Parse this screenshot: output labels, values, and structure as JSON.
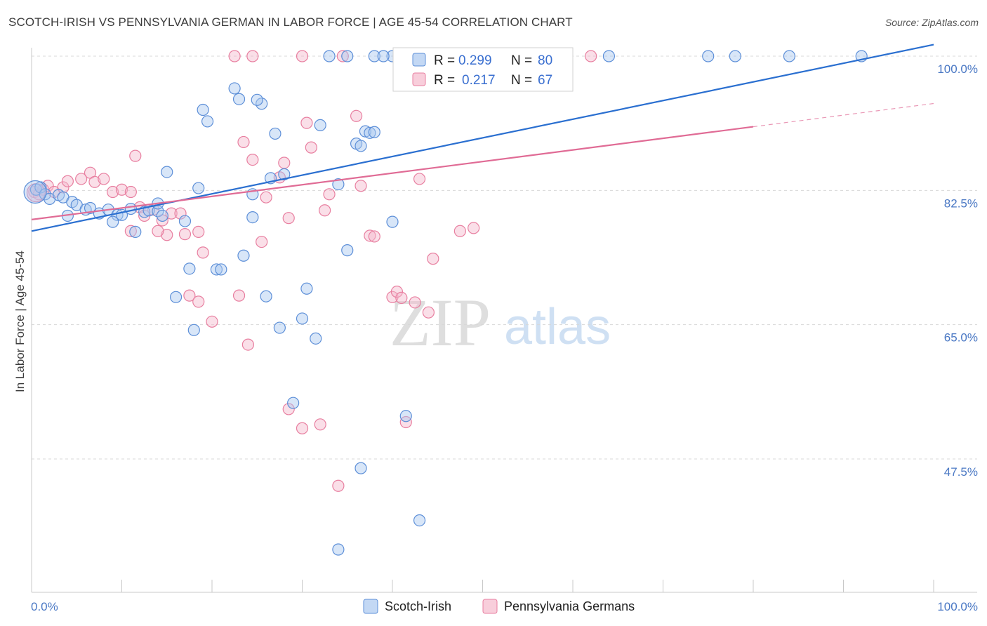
{
  "title": "SCOTCH-IRISH VS PENNSYLVANIA GERMAN IN LABOR FORCE | AGE 45-54 CORRELATION CHART",
  "source": "Source: ZipAtlas.com",
  "watermark": {
    "zip": "ZIP",
    "atlas": "atlas"
  },
  "colors": {
    "blue_fill": "#a9c8f0",
    "blue_stroke": "#5d8fd8",
    "blue_line": "#2a6fd0",
    "pink_fill": "#f5b9cc",
    "pink_stroke": "#e87fa0",
    "pink_line": "#e06b95",
    "grid": "#d8d8d8",
    "tick_text": "#4a78c4"
  },
  "legend": {
    "r_label": "R =",
    "n_label": "N =",
    "rows": [
      {
        "r": "0.299",
        "n": "80"
      },
      {
        "r": "0.217",
        "n": "67"
      }
    ]
  },
  "chart_data": {
    "type": "scatter",
    "title": "SCOTCH-IRISH VS PENNSYLVANIA GERMAN IN LABOR FORCE | AGE 45-54 CORRELATION CHART",
    "xlabel": "",
    "ylabel": "In Labor Force | Age 45-54",
    "xlim": [
      0,
      100
    ],
    "ylim": [
      35.0,
      101.5
    ],
    "x_tick_labels": [
      {
        "v": 0,
        "label": "0.0%"
      },
      {
        "v": 100,
        "label": "100.0%"
      }
    ],
    "y_ticks": [
      {
        "v": 100.0,
        "label": "100.0%"
      },
      {
        "v": 82.5,
        "label": "82.5%"
      },
      {
        "v": 65.0,
        "label": "65.0%"
      },
      {
        "v": 47.5,
        "label": "47.5%"
      }
    ],
    "grid": "horizontal dashed",
    "legend_placement": "top-center",
    "series": [
      {
        "name": "Scotch-Irish",
        "trend": {
          "x0": 0,
          "y0": 77.2,
          "x1": 100,
          "y1": 101.5
        },
        "points": [
          [
            0.5,
            82.6
          ],
          [
            1.0,
            82.9
          ],
          [
            1.5,
            82.0
          ],
          [
            2.0,
            81.4
          ],
          [
            3.0,
            81.9
          ],
          [
            3.5,
            81.6
          ],
          [
            4.5,
            81.0
          ],
          [
            5.0,
            80.6
          ],
          [
            4.0,
            79.2
          ],
          [
            6.0,
            80.0
          ],
          [
            6.5,
            80.2
          ],
          [
            7.5,
            79.5
          ],
          [
            8.5,
            80.0
          ],
          [
            9.5,
            79.3
          ],
          [
            10.0,
            79.3
          ],
          [
            11.0,
            80.1
          ],
          [
            12.5,
            79.7
          ],
          [
            13.0,
            79.9
          ],
          [
            14.0,
            79.8
          ],
          [
            14.5,
            79.2
          ],
          [
            9.0,
            78.4
          ],
          [
            11.5,
            77.1
          ],
          [
            15.0,
            84.9
          ],
          [
            18.5,
            82.8
          ],
          [
            19.0,
            93.0
          ],
          [
            19.5,
            91.5
          ],
          [
            17.0,
            78.5
          ],
          [
            17.5,
            72.3
          ],
          [
            20.5,
            72.2
          ],
          [
            21.0,
            72.2
          ],
          [
            16.0,
            68.6
          ],
          [
            18.0,
            64.3
          ],
          [
            14.0,
            80.8
          ],
          [
            22.5,
            95.8
          ],
          [
            23.0,
            94.4
          ],
          [
            25.5,
            93.8
          ],
          [
            24.5,
            82.0
          ],
          [
            24.5,
            79.0
          ],
          [
            23.5,
            74.0
          ],
          [
            27.0,
            89.9
          ],
          [
            26.5,
            84.1
          ],
          [
            28.0,
            84.6
          ],
          [
            26.0,
            68.7
          ],
          [
            27.5,
            64.6
          ],
          [
            30.5,
            69.7
          ],
          [
            30.0,
            65.8
          ],
          [
            31.5,
            63.2
          ],
          [
            25.0,
            94.3
          ],
          [
            32.0,
            91.0
          ],
          [
            34.0,
            83.3
          ],
          [
            29.0,
            54.8
          ],
          [
            35.0,
            74.7
          ],
          [
            36.0,
            88.6
          ],
          [
            36.5,
            88.3
          ],
          [
            37.0,
            90.2
          ],
          [
            37.5,
            90.0
          ],
          [
            38.0,
            90.1
          ],
          [
            40.0,
            78.4
          ],
          [
            41.5,
            53.1
          ],
          [
            43.0,
            98.0
          ],
          [
            45.0,
            97.3
          ],
          [
            36.5,
            46.3
          ],
          [
            43.0,
            39.5
          ],
          [
            34.0,
            35.7
          ],
          [
            33.0,
            100.0
          ],
          [
            35.0,
            100.0
          ],
          [
            38.0,
            100.0
          ],
          [
            40.0,
            100.0
          ],
          [
            42.0,
            100.0
          ],
          [
            44.0,
            100.0
          ],
          [
            39.0,
            100.0
          ],
          [
            42.0,
            100.0
          ],
          [
            45.0,
            100.0
          ],
          [
            52.0,
            100.0
          ],
          [
            58.0,
            100.0
          ],
          [
            64.0,
            100.0
          ],
          [
            75.0,
            100.0
          ],
          [
            78.0,
            100.0
          ],
          [
            84.0,
            100.0
          ],
          [
            92.0,
            100.0
          ]
        ]
      },
      {
        "name": "Pennsylvania Germans",
        "trend": {
          "x0": 0,
          "y0": 78.7,
          "x1": 80,
          "y1": 90.8
        },
        "points": [
          [
            0.3,
            82.3
          ],
          [
            0.8,
            82.0
          ],
          [
            1.3,
            82.6
          ],
          [
            1.8,
            83.1
          ],
          [
            2.5,
            82.3
          ],
          [
            3.5,
            82.9
          ],
          [
            4.0,
            83.7
          ],
          [
            5.5,
            84.0
          ],
          [
            6.5,
            84.8
          ],
          [
            7.0,
            83.6
          ],
          [
            8.0,
            84.0
          ],
          [
            9.0,
            82.3
          ],
          [
            10.0,
            82.6
          ],
          [
            11.0,
            82.3
          ],
          [
            12.0,
            80.3
          ],
          [
            13.5,
            80.0
          ],
          [
            12.5,
            79.2
          ],
          [
            14.5,
            78.6
          ],
          [
            15.5,
            79.5
          ],
          [
            16.5,
            79.5
          ],
          [
            11.0,
            77.2
          ],
          [
            15.0,
            76.7
          ],
          [
            17.0,
            76.8
          ],
          [
            18.5,
            77.1
          ],
          [
            19.0,
            74.4
          ],
          [
            11.5,
            87.0
          ],
          [
            14.0,
            77.2
          ],
          [
            17.5,
            68.8
          ],
          [
            18.5,
            68.0
          ],
          [
            20.0,
            65.4
          ],
          [
            23.5,
            88.8
          ],
          [
            24.5,
            86.5
          ],
          [
            26.0,
            81.6
          ],
          [
            25.5,
            75.8
          ],
          [
            27.5,
            84.2
          ],
          [
            28.5,
            78.9
          ],
          [
            28.0,
            86.1
          ],
          [
            30.5,
            91.3
          ],
          [
            31.0,
            88.1
          ],
          [
            33.0,
            82.0
          ],
          [
            32.5,
            79.9
          ],
          [
            36.0,
            92.2
          ],
          [
            36.5,
            83.1
          ],
          [
            37.5,
            76.6
          ],
          [
            38.0,
            76.5
          ],
          [
            40.0,
            68.6
          ],
          [
            40.5,
            69.3
          ],
          [
            41.0,
            68.5
          ],
          [
            43.0,
            84.0
          ],
          [
            42.5,
            67.9
          ],
          [
            44.0,
            66.6
          ],
          [
            44.5,
            73.6
          ],
          [
            47.5,
            77.2
          ],
          [
            49.0,
            77.6
          ],
          [
            23.0,
            68.8
          ],
          [
            24.0,
            62.4
          ],
          [
            28.5,
            54.0
          ],
          [
            30.0,
            51.5
          ],
          [
            34.0,
            44.0
          ],
          [
            32.0,
            52.0
          ],
          [
            41.5,
            52.3
          ],
          [
            22.5,
            100.0
          ],
          [
            24.5,
            100.0
          ],
          [
            30.0,
            100.0
          ],
          [
            34.5,
            100.0
          ],
          [
            50.0,
            100.0
          ],
          [
            62.0,
            100.0
          ]
        ]
      }
    ]
  }
}
